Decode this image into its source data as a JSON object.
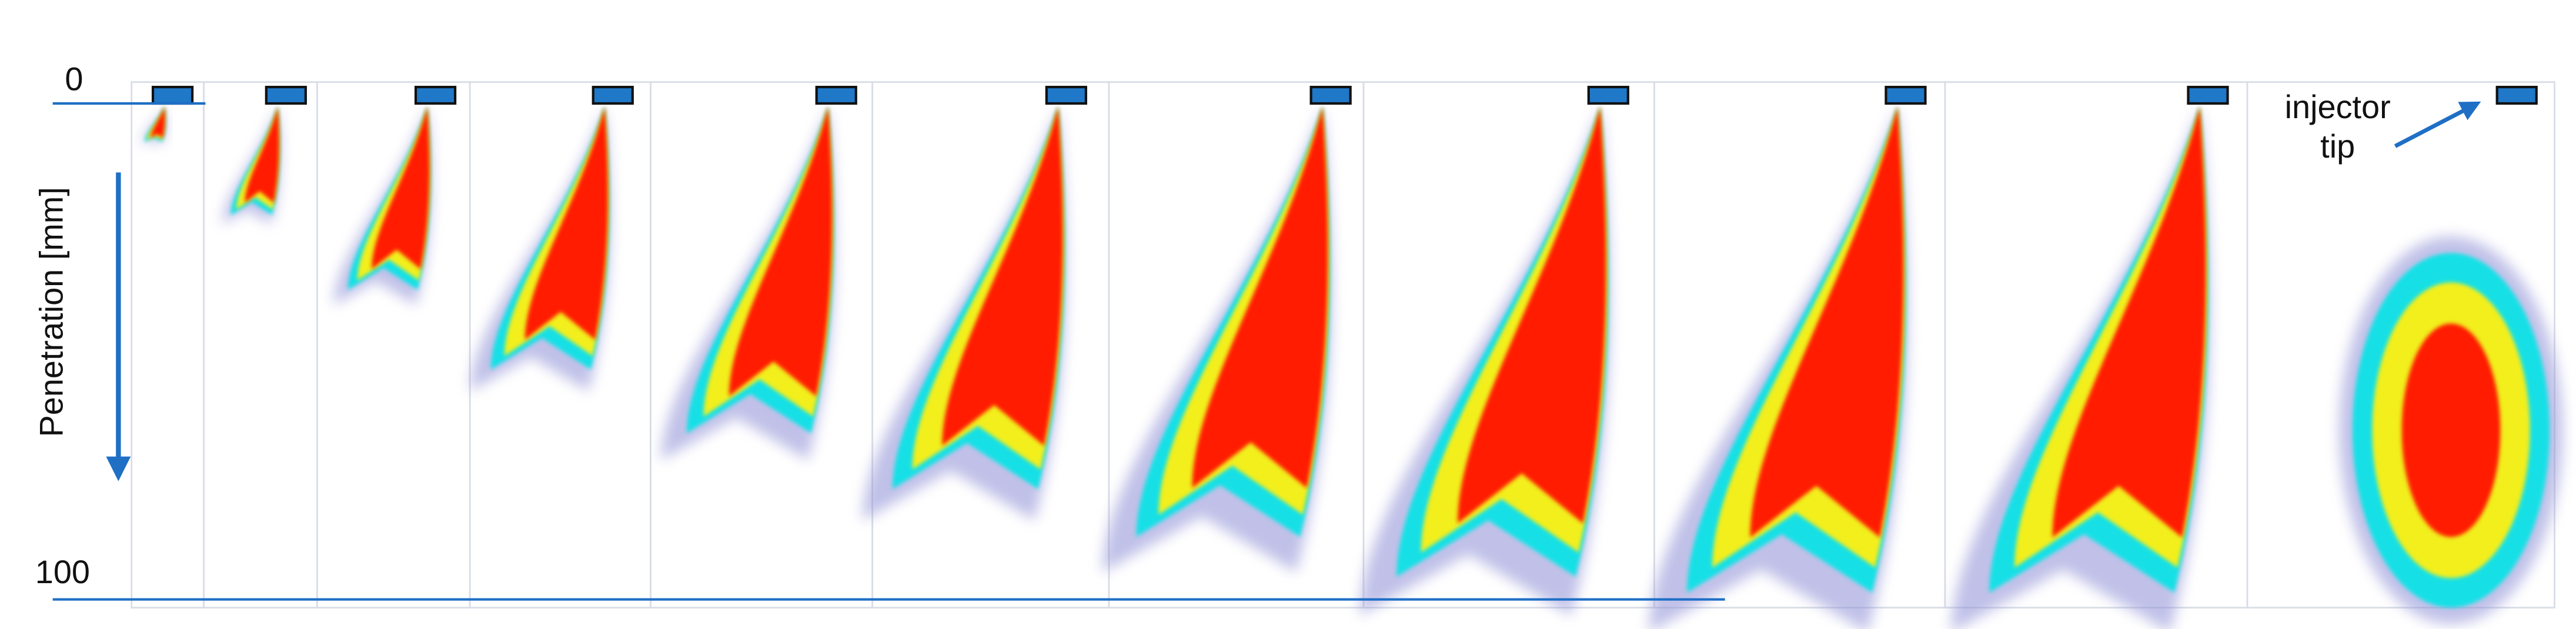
{
  "axis": {
    "top_label": "0",
    "bottom_label": "100",
    "title": "Penetration [mm]"
  },
  "annotation": {
    "lines": [
      "injector",
      "tip"
    ]
  }
}
